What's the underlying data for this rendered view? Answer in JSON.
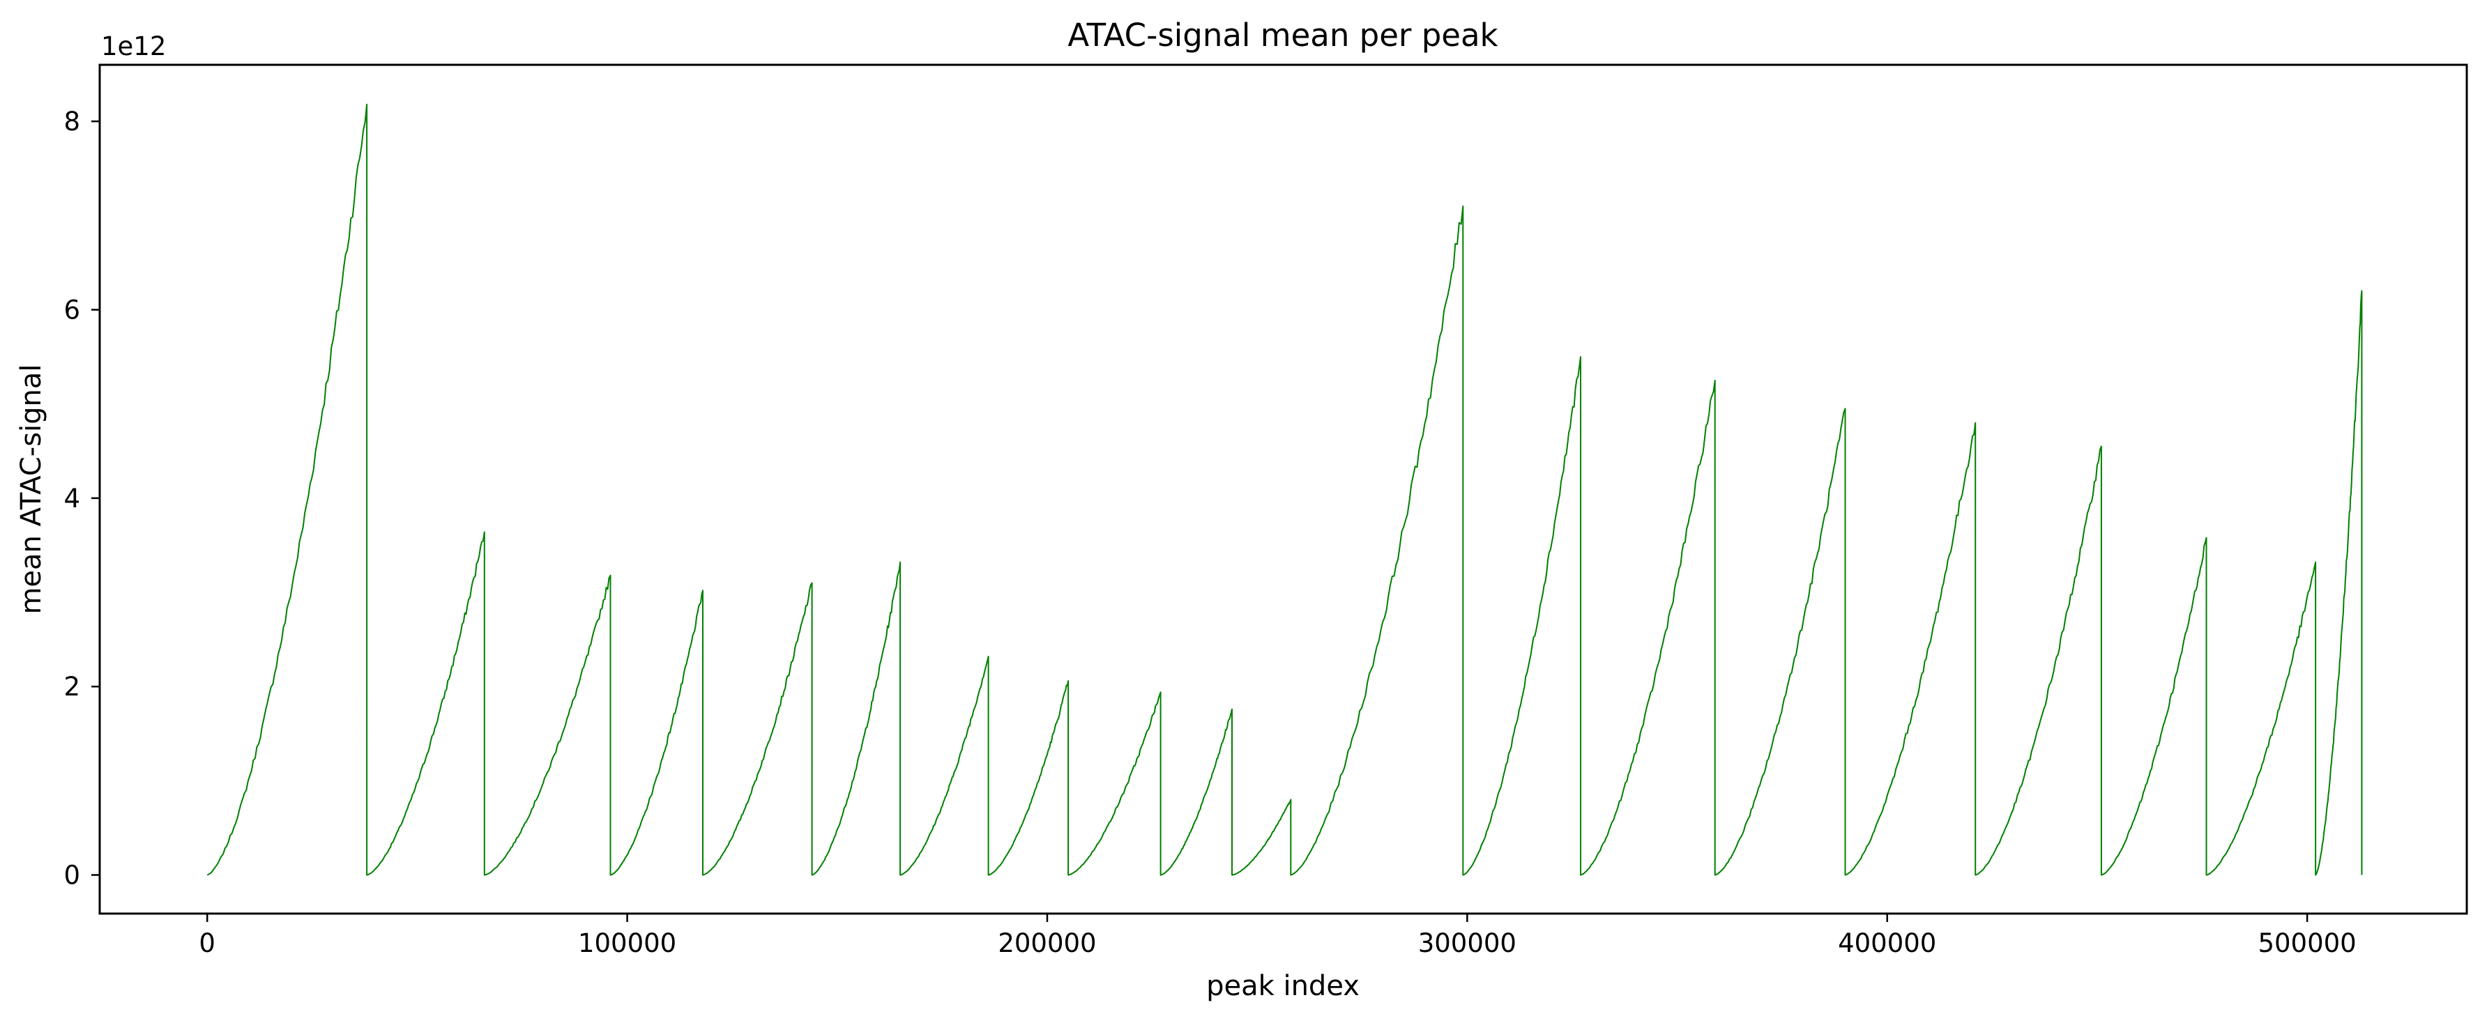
{
  "chart_data": {
    "type": "line",
    "title": "ATAC-signal mean per peak",
    "xlabel": "peak index",
    "ylabel": "mean ATAC-signal",
    "y_offset_label": "1e12",
    "xlim": [
      -25600,
      538000
    ],
    "ylim": [
      -0.41,
      8.6
    ],
    "y_unit_scale": 1000000000000.0,
    "x_ticks": [
      0,
      100000,
      200000,
      300000,
      400000,
      500000
    ],
    "x_tick_labels": [
      "0",
      "100000",
      "200000",
      "300000",
      "400000",
      "500000"
    ],
    "y_ticks": [
      0,
      2,
      4,
      6,
      8
    ],
    "y_tick_labels": [
      "0",
      "2",
      "4",
      "6",
      "8"
    ],
    "grid": false,
    "legend": "none",
    "line_color": "#008000",
    "series": [
      {
        "segments": [
          {
            "x_start": 0,
            "x_end": 38000,
            "y_peak": 8.18
          },
          {
            "x_start": 38000,
            "x_end": 66000,
            "y_peak": 3.64
          },
          {
            "x_start": 66000,
            "x_end": 96000,
            "y_peak": 3.18
          },
          {
            "x_start": 96000,
            "x_end": 118000,
            "y_peak": 3.02
          },
          {
            "x_start": 118000,
            "x_end": 144000,
            "y_peak": 3.1
          },
          {
            "x_start": 144000,
            "x_end": 165000,
            "y_peak": 3.32
          },
          {
            "x_start": 165000,
            "x_end": 186000,
            "y_peak": 2.32
          },
          {
            "x_start": 186000,
            "x_end": 205000,
            "y_peak": 2.06
          },
          {
            "x_start": 205000,
            "x_end": 227000,
            "y_peak": 1.94
          },
          {
            "x_start": 227000,
            "x_end": 244000,
            "y_peak": 1.76
          },
          {
            "x_start": 244000,
            "x_end": 258000,
            "y_peak": 0.8
          },
          {
            "x_start": 258000,
            "x_end": 299000,
            "y_peak": 7.1
          },
          {
            "x_start": 299000,
            "x_end": 327000,
            "y_peak": 5.5
          },
          {
            "x_start": 327000,
            "x_end": 359000,
            "y_peak": 5.25
          },
          {
            "x_start": 359000,
            "x_end": 390000,
            "y_peak": 4.95
          },
          {
            "x_start": 390000,
            "x_end": 421000,
            "y_peak": 4.8
          },
          {
            "x_start": 421000,
            "x_end": 451000,
            "y_peak": 4.55
          },
          {
            "x_start": 451000,
            "x_end": 476000,
            "y_peak": 3.58
          },
          {
            "x_start": 476000,
            "x_end": 502000,
            "y_peak": 3.32
          },
          {
            "x_start": 502000,
            "x_end": 513000,
            "y_peak": 6.2
          }
        ]
      }
    ]
  }
}
